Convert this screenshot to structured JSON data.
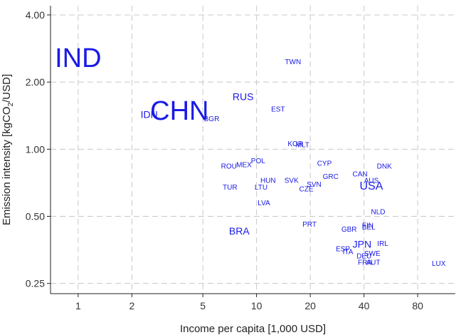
{
  "chart_data": {
    "type": "scatter",
    "xlabel": "Income per capita [1,000 USD]",
    "ylabel": "Emission intensity [kgCO2/USD]",
    "ylabel_sub": "2",
    "ylabel_suffix": "/USD]",
    "ylabel_prefix": "Emission intensity [kgCO",
    "x_scale": "log",
    "y_scale": "log",
    "xlim": [
      0.7,
      130
    ],
    "ylim": [
      0.225,
      4.4
    ],
    "x_ticks": [
      1,
      2,
      5,
      10,
      20,
      40,
      80
    ],
    "x_tick_labels": [
      "1",
      "2",
      "5",
      "10",
      "20",
      "40",
      "80"
    ],
    "y_ticks": [
      0.25,
      0.5,
      1,
      2,
      4
    ],
    "y_tick_labels": [
      "0.25",
      "0.50",
      "1.00",
      "2.00",
      "4.00"
    ],
    "grid": true,
    "label_color": "#1a1ae6",
    "points": [
      {
        "label": "IND",
        "x": 1.0,
        "y": 2.55,
        "size": 38
      },
      {
        "label": "CHN",
        "x": 3.7,
        "y": 1.48,
        "size": 38
      },
      {
        "label": "IDN",
        "x": 2.5,
        "y": 1.43,
        "size": 14
      },
      {
        "label": "RUS",
        "x": 8.4,
        "y": 1.72,
        "size": 14
      },
      {
        "label": "BGR",
        "x": 5.6,
        "y": 1.36,
        "size": 10
      },
      {
        "label": "TWN",
        "x": 16.0,
        "y": 2.45,
        "size": 10
      },
      {
        "label": "EST",
        "x": 13.2,
        "y": 1.5,
        "size": 10
      },
      {
        "label": "KOR",
        "x": 16.5,
        "y": 1.05,
        "size": 10
      },
      {
        "label": "MLT",
        "x": 18.1,
        "y": 1.04,
        "size": 10
      },
      {
        "label": "POL",
        "x": 10.2,
        "y": 0.88,
        "size": 10
      },
      {
        "label": "MEX",
        "x": 8.5,
        "y": 0.845,
        "size": 10
      },
      {
        "label": "ROU",
        "x": 7.0,
        "y": 0.835,
        "size": 10
      },
      {
        "label": "CYP",
        "x": 24.0,
        "y": 0.86,
        "size": 10
      },
      {
        "label": "DNK",
        "x": 52.0,
        "y": 0.835,
        "size": 10
      },
      {
        "label": "CAN",
        "x": 38.0,
        "y": 0.77,
        "size": 10
      },
      {
        "label": "GRC",
        "x": 26.0,
        "y": 0.75,
        "size": 10
      },
      {
        "label": "AUS",
        "x": 44.0,
        "y": 0.72,
        "size": 10
      },
      {
        "label": "USA",
        "x": 44.0,
        "y": 0.68,
        "size": 16
      },
      {
        "label": "HUN",
        "x": 11.6,
        "y": 0.72,
        "size": 10
      },
      {
        "label": "SVK",
        "x": 15.7,
        "y": 0.72,
        "size": 10
      },
      {
        "label": "SVN",
        "x": 21.0,
        "y": 0.69,
        "size": 10
      },
      {
        "label": "TUR",
        "x": 7.1,
        "y": 0.67,
        "size": 10
      },
      {
        "label": "LTU",
        "x": 10.6,
        "y": 0.67,
        "size": 10
      },
      {
        "label": "CZE",
        "x": 19.0,
        "y": 0.66,
        "size": 10
      },
      {
        "label": "LVA",
        "x": 11.0,
        "y": 0.57,
        "size": 10
      },
      {
        "label": "NLD",
        "x": 48.0,
        "y": 0.52,
        "size": 10
      },
      {
        "label": "PRT",
        "x": 19.8,
        "y": 0.458,
        "size": 10
      },
      {
        "label": "BRA",
        "x": 8.0,
        "y": 0.43,
        "size": 14
      },
      {
        "label": "GBR",
        "x": 33.0,
        "y": 0.435,
        "size": 10
      },
      {
        "label": "BEL",
        "x": 42.5,
        "y": 0.445,
        "size": 10
      },
      {
        "label": "FIN",
        "x": 42.0,
        "y": 0.452,
        "size": 10
      },
      {
        "label": "JPN",
        "x": 39.0,
        "y": 0.375,
        "size": 14
      },
      {
        "label": "IRL",
        "x": 51.0,
        "y": 0.375,
        "size": 10
      },
      {
        "label": "ESP",
        "x": 30.5,
        "y": 0.355,
        "size": 10
      },
      {
        "label": "ITA",
        "x": 32.5,
        "y": 0.345,
        "size": 10
      },
      {
        "label": "SWE",
        "x": 44.5,
        "y": 0.338,
        "size": 10
      },
      {
        "label": "DEU",
        "x": 40.0,
        "y": 0.33,
        "size": 10
      },
      {
        "label": "FRA",
        "x": 40.5,
        "y": 0.309,
        "size": 10
      },
      {
        "label": "AUT",
        "x": 45.0,
        "y": 0.309,
        "size": 10
      },
      {
        "label": "LUX",
        "x": 105.0,
        "y": 0.305,
        "size": 10
      }
    ]
  }
}
